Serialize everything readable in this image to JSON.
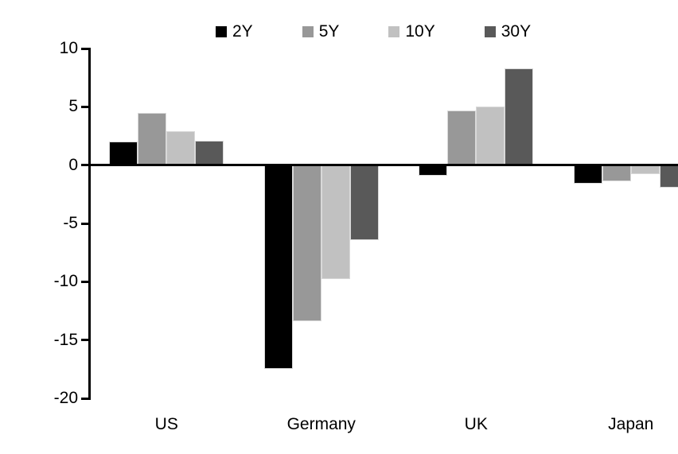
{
  "chart_data": {
    "type": "bar",
    "title": "",
    "xlabel": "",
    "ylabel": "",
    "categories": [
      "US",
      "Germany",
      "UK",
      "Japan"
    ],
    "series": [
      {
        "name": "2Y",
        "color": "#000000",
        "values": [
          2.0,
          -17.5,
          -0.9,
          -1.6
        ]
      },
      {
        "name": "5Y",
        "color": "#989898",
        "values": [
          4.5,
          -13.4,
          4.7,
          -1.4
        ]
      },
      {
        "name": "10Y",
        "color": "#c1c1c1",
        "values": [
          2.9,
          -9.8,
          5.0,
          -0.8
        ]
      },
      {
        "name": "30Y",
        "color": "#595959",
        "values": [
          2.1,
          -6.4,
          8.3,
          -1.9
        ]
      }
    ],
    "ylim": [
      -20,
      10
    ],
    "yticks": [
      10,
      5,
      0,
      -5,
      -10,
      -15,
      -20
    ],
    "legend_position": "top",
    "grid": false,
    "axis_color": "#000000",
    "background_color": "#ffffff",
    "bar_border_color": "#d9d9d9"
  }
}
